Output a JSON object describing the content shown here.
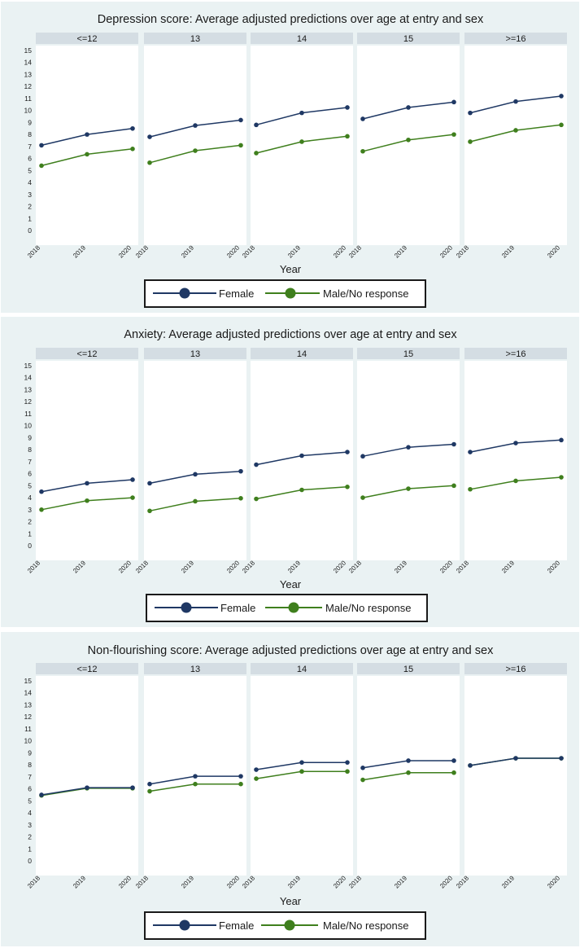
{
  "colors": {
    "female": "#1f3864",
    "male": "#3f7f1d",
    "panel_bg": "#eaf2f3",
    "strip": "#d4dde3"
  },
  "chart_data": [
    {
      "type": "line",
      "title": "Depression score: Average adjusted predictions over age at entry and sex",
      "xlabel": "Year",
      "ylim": [
        0,
        15
      ],
      "yticks": [
        "0",
        "1",
        "2",
        "3",
        "4",
        "5",
        "6",
        "7",
        "8",
        "9",
        "10",
        "11",
        "12",
        "13",
        "14",
        "15"
      ],
      "x": [
        "2018",
        "2019",
        "2020"
      ],
      "legend": {
        "placement": "bottom",
        "entries": [
          "Female",
          "Male/No response"
        ]
      },
      "panels": [
        {
          "label": "<=12",
          "series": [
            {
              "name": "Female",
              "values": [
                7.1,
                8.0,
                8.5
              ]
            },
            {
              "name": "Male/No response",
              "values": [
                5.4,
                6.35,
                6.8
              ]
            }
          ]
        },
        {
          "label": "13",
          "series": [
            {
              "name": "Female",
              "values": [
                7.8,
                8.75,
                9.2
              ]
            },
            {
              "name": "Male/No response",
              "values": [
                5.65,
                6.65,
                7.1
              ]
            }
          ]
        },
        {
          "label": "14",
          "series": [
            {
              "name": "Female",
              "values": [
                8.8,
                9.8,
                10.25
              ]
            },
            {
              "name": "Male/No response",
              "values": [
                6.45,
                7.4,
                7.85
              ]
            }
          ]
        },
        {
          "label": "15",
          "series": [
            {
              "name": "Female",
              "values": [
                9.3,
                10.25,
                10.7
              ]
            },
            {
              "name": "Male/No response",
              "values": [
                6.6,
                7.55,
                8.0
              ]
            }
          ]
        },
        {
          "label": ">=16",
          "series": [
            {
              "name": "Female",
              "values": [
                9.8,
                10.75,
                11.2
              ]
            },
            {
              "name": "Male/No response",
              "values": [
                7.4,
                8.35,
                8.8
              ]
            }
          ]
        }
      ]
    },
    {
      "type": "line",
      "title": "Anxiety: Average adjusted predictions over age at entry and sex",
      "xlabel": "Year",
      "ylim": [
        0,
        15
      ],
      "yticks": [
        "0",
        "1",
        "2",
        "3",
        "4",
        "5",
        "6",
        "7",
        "8",
        "9",
        "10",
        "11",
        "12",
        "13",
        "14",
        "15"
      ],
      "x": [
        "2018",
        "2019",
        "2020"
      ],
      "legend": {
        "placement": "bottom",
        "entries": [
          "Female",
          "Male/No response"
        ]
      },
      "panels": [
        {
          "label": "<=12",
          "series": [
            {
              "name": "Female",
              "values": [
                4.5,
                5.2,
                5.5
              ]
            },
            {
              "name": "Male/No response",
              "values": [
                3.0,
                3.75,
                4.0
              ]
            }
          ]
        },
        {
          "label": "13",
          "series": [
            {
              "name": "Female",
              "values": [
                5.2,
                5.95,
                6.2
              ]
            },
            {
              "name": "Male/No response",
              "values": [
                2.9,
                3.7,
                3.95
              ]
            }
          ]
        },
        {
          "label": "14",
          "series": [
            {
              "name": "Female",
              "values": [
                6.75,
                7.5,
                7.8
              ]
            },
            {
              "name": "Male/No response",
              "values": [
                3.9,
                4.65,
                4.9
              ]
            }
          ]
        },
        {
          "label": "15",
          "series": [
            {
              "name": "Female",
              "values": [
                7.45,
                8.2,
                8.45
              ]
            },
            {
              "name": "Male/No response",
              "values": [
                4.0,
                4.75,
                5.0
              ]
            }
          ]
        },
        {
          "label": ">=16",
          "series": [
            {
              "name": "Female",
              "values": [
                7.8,
                8.55,
                8.8
              ]
            },
            {
              "name": "Male/No response",
              "values": [
                4.7,
                5.4,
                5.7
              ]
            }
          ]
        }
      ]
    },
    {
      "type": "line",
      "title": "Non-flourishing score: Average adjusted predictions over age at entry and sex",
      "xlabel": "Year",
      "ylim": [
        0,
        15
      ],
      "yticks": [
        "0",
        "1",
        "2",
        "3",
        "4",
        "5",
        "6",
        "7",
        "8",
        "9",
        "10",
        "11",
        "12",
        "13",
        "14",
        "15"
      ],
      "x": [
        "2018",
        "2019",
        "2020"
      ],
      "legend": {
        "placement": "bottom",
        "entries": [
          "Female",
          "Male/No response"
        ]
      },
      "panels": [
        {
          "label": "<=12",
          "series": [
            {
              "name": "Female",
              "values": [
                5.5,
                6.1,
                6.1
              ]
            },
            {
              "name": "Male/No response",
              "values": [
                5.45,
                6.05,
                6.05
              ]
            }
          ]
        },
        {
          "label": "13",
          "series": [
            {
              "name": "Female",
              "values": [
                6.4,
                7.05,
                7.05
              ]
            },
            {
              "name": "Male/No response",
              "values": [
                5.8,
                6.4,
                6.4
              ]
            }
          ]
        },
        {
          "label": "14",
          "series": [
            {
              "name": "Female",
              "values": [
                7.6,
                8.2,
                8.2
              ]
            },
            {
              "name": "Male/No response",
              "values": [
                6.85,
                7.45,
                7.45
              ]
            }
          ]
        },
        {
          "label": "15",
          "series": [
            {
              "name": "Female",
              "values": [
                7.75,
                8.35,
                8.35
              ]
            },
            {
              "name": "Male/No response",
              "values": [
                6.75,
                7.35,
                7.35
              ]
            }
          ]
        },
        {
          "label": ">=16",
          "series": [
            {
              "name": "Female",
              "values": [
                7.95,
                8.55,
                8.55
              ]
            },
            {
              "name": "Male/No response",
              "values": [
                7.95,
                8.55,
                8.55
              ]
            }
          ]
        }
      ]
    }
  ]
}
